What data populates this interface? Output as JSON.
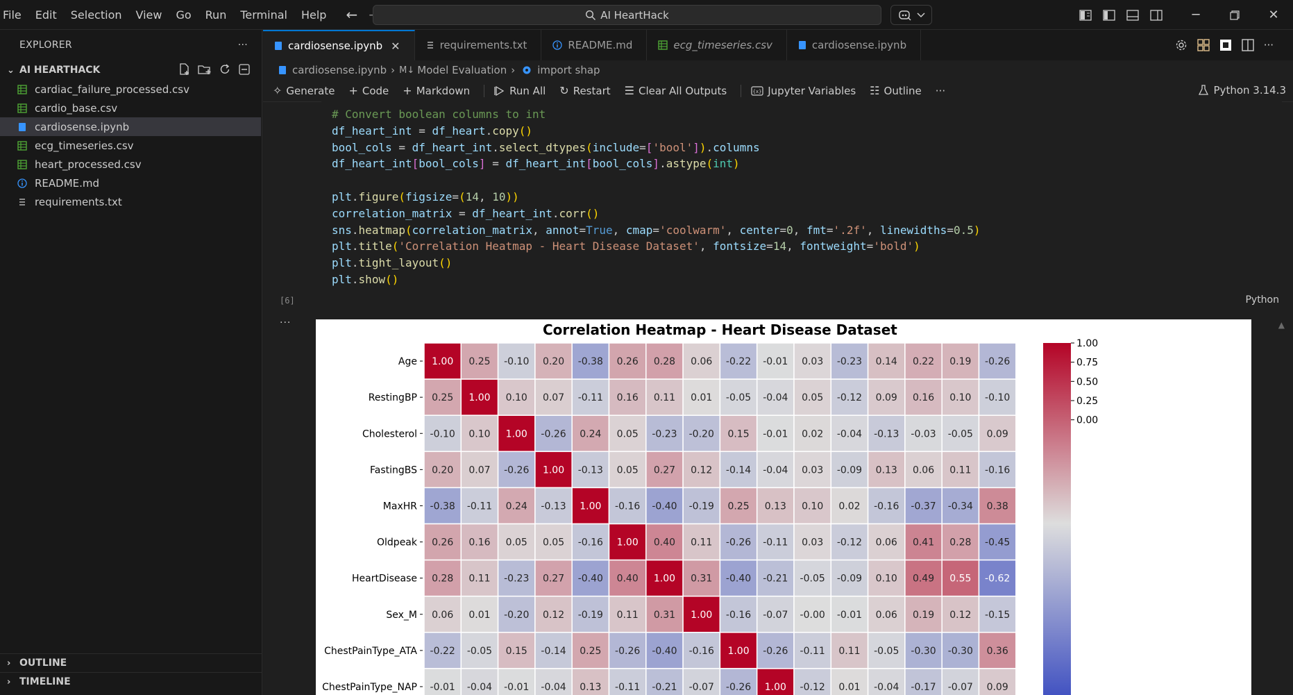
{
  "menu": [
    "File",
    "Edit",
    "Selection",
    "View",
    "Go",
    "Run",
    "Terminal",
    "Help"
  ],
  "search": {
    "label": "AI HeartHack"
  },
  "sidebar": {
    "title": "EXPLORER",
    "more": "···",
    "workspace": "AI HEARTHACK",
    "files": [
      {
        "name": "cardiac_failure_processed.csv",
        "type": "csv"
      },
      {
        "name": "cardio_base.csv",
        "type": "csv"
      },
      {
        "name": "cardiosense.ipynb",
        "type": "ipynb",
        "active": true
      },
      {
        "name": "ecg_timeseries.csv",
        "type": "csv"
      },
      {
        "name": "heart_processed.csv",
        "type": "csv"
      },
      {
        "name": "README.md",
        "type": "info"
      },
      {
        "name": "requirements.txt",
        "type": "txt"
      }
    ],
    "outline": "OUTLINE",
    "timeline": "TIMELINE"
  },
  "tabs": [
    {
      "label": "cardiosense.ipynb",
      "type": "ipynb",
      "active": true,
      "close": "✕"
    },
    {
      "label": "requirements.txt",
      "type": "txt"
    },
    {
      "label": "README.md",
      "type": "info"
    },
    {
      "label": "ecg_timeseries.csv",
      "type": "csv",
      "italic": true
    },
    {
      "label": "cardiosense.ipynb",
      "type": "ipynb"
    }
  ],
  "breadcrumb": {
    "file": "cardiosense.ipynb",
    "section_prefix": "M↓",
    "section": "Model Evaluation",
    "symbol": "import shap"
  },
  "toolbar": {
    "generate": "Generate",
    "code": "Code",
    "markdown": "Markdown",
    "run_all": "Run All",
    "restart": "Restart",
    "clear_outputs": "Clear All Outputs",
    "variables": "Jupyter Variables",
    "outline": "Outline",
    "more": "···",
    "kernel": "Python 3.14.3"
  },
  "cell": {
    "exec_count": "[6]",
    "language": "Python",
    "output_more": "···",
    "code_lines": [
      "# Convert boolean columns to int",
      "df_heart_int = df_heart.copy()",
      "bool_cols = df_heart_int.select_dtypes(include=['bool']).columns",
      "df_heart_int[bool_cols] = df_heart_int[bool_cols].astype(int)",
      "",
      "plt.figure(figsize=(14, 10))",
      "correlation_matrix = df_heart_int.corr()",
      "sns.heatmap(correlation_matrix, annot=True, cmap='coolwarm', center=0, fmt='.2f', linewidths=0.5)",
      "plt.title('Correlation Heatmap - Heart Disease Dataset', fontsize=14, fontweight='bold')",
      "plt.tight_layout()",
      "plt.show()"
    ]
  },
  "chart_data": {
    "type": "heatmap",
    "title": "Correlation Heatmap - Heart Disease Dataset",
    "rows": [
      "Age",
      "RestingBP",
      "Cholesterol",
      "FastingBS",
      "MaxHR",
      "Oldpeak",
      "HeartDisease",
      "Sex_M",
      "ChestPainType_ATA",
      "ChestPainType_NAP"
    ],
    "values": [
      [
        "1.00",
        "0.25",
        "-0.10",
        "0.20",
        "-0.38",
        "0.26",
        "0.28",
        "0.06",
        "-0.22",
        "-0.01",
        "0.03",
        "-0.23",
        "0.14",
        "0.22",
        "0.19",
        "-0.26"
      ],
      [
        "0.25",
        "1.00",
        "0.10",
        "0.07",
        "-0.11",
        "0.16",
        "0.11",
        "0.01",
        "-0.05",
        "-0.04",
        "0.05",
        "-0.12",
        "0.09",
        "0.16",
        "0.10",
        "-0.10"
      ],
      [
        "-0.10",
        "0.10",
        "1.00",
        "-0.26",
        "0.24",
        "0.05",
        "-0.23",
        "-0.20",
        "0.15",
        "-0.01",
        "0.02",
        "-0.04",
        "-0.13",
        "-0.03",
        "-0.05",
        "0.09"
      ],
      [
        "0.20",
        "0.07",
        "-0.26",
        "1.00",
        "-0.13",
        "0.05",
        "0.27",
        "0.12",
        "-0.14",
        "-0.04",
        "0.03",
        "-0.09",
        "0.13",
        "0.06",
        "0.11",
        "-0.16"
      ],
      [
        "-0.38",
        "-0.11",
        "0.24",
        "-0.13",
        "1.00",
        "-0.16",
        "-0.40",
        "-0.19",
        "0.25",
        "0.13",
        "0.10",
        "0.02",
        "-0.16",
        "-0.37",
        "-0.34",
        "0.38"
      ],
      [
        "0.26",
        "0.16",
        "0.05",
        "0.05",
        "-0.16",
        "1.00",
        "0.40",
        "0.11",
        "-0.26",
        "-0.11",
        "0.03",
        "-0.12",
        "0.06",
        "0.41",
        "0.28",
        "-0.45"
      ],
      [
        "0.28",
        "0.11",
        "-0.23",
        "0.27",
        "-0.40",
        "0.40",
        "1.00",
        "0.31",
        "-0.40",
        "-0.21",
        "-0.05",
        "-0.09",
        "0.10",
        "0.49",
        "0.55",
        "-0.62"
      ],
      [
        "0.06",
        "0.01",
        "-0.20",
        "0.12",
        "-0.19",
        "0.11",
        "0.31",
        "1.00",
        "-0.16",
        "-0.07",
        "-0.00",
        "-0.01",
        "0.06",
        "0.19",
        "0.12",
        "-0.15"
      ],
      [
        "-0.22",
        "-0.05",
        "0.15",
        "-0.14",
        "0.25",
        "-0.26",
        "-0.40",
        "-0.16",
        "1.00",
        "-0.26",
        "-0.11",
        "0.11",
        "-0.05",
        "-0.30",
        "-0.30",
        "0.36"
      ],
      [
        "-0.01",
        "-0.04",
        "-0.01",
        "-0.04",
        "0.13",
        "-0.11",
        "-0.21",
        "-0.07",
        "-0.26",
        "1.00",
        "-0.12",
        "0.01",
        "-0.04",
        "-0.17",
        "-0.07",
        "0.09"
      ]
    ],
    "colorbar": {
      "ticks": [
        "1.00",
        "0.75",
        "0.50",
        "0.25",
        "0.00"
      ],
      "range": [
        -1,
        1
      ]
    },
    "colormap": "coolwarm"
  },
  "colors": {
    "accent": "#0078d4",
    "csv": "#4ea535",
    "ipynb": "#3794ff",
    "info": "#3794ff"
  }
}
